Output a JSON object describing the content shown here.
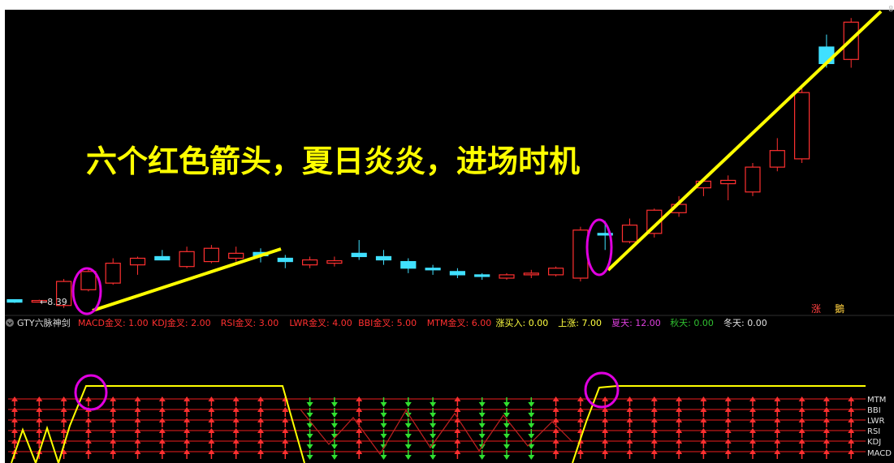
{
  "upper_panel": {
    "headline": "六个红色箭头，夏日炎炎，进场时机",
    "price_marker": "←8.39",
    "corner_value": "8",
    "badges": [
      "涨",
      "鵝"
    ]
  },
  "indicator_bar": {
    "name": "GTY六脉神剑",
    "items": [
      {
        "label": "MACD金叉",
        "value": "1.00",
        "color": "#ff3030"
      },
      {
        "label": "KDJ金叉",
        "value": "2.00",
        "color": "#ff3030"
      },
      {
        "label": "RSI金叉",
        "value": "3.00",
        "color": "#ff3030"
      },
      {
        "label": "LWR金叉",
        "value": "4.00",
        "color": "#ff3030"
      },
      {
        "label": "BBI金叉",
        "value": "5.00",
        "color": "#ff3030"
      },
      {
        "label": "MTM金叉",
        "value": "6.00",
        "color": "#ff3030"
      },
      {
        "label": "涨买入",
        "value": "0.00",
        "color": "#ffff40"
      },
      {
        "label": "上涨",
        "value": "7.00",
        "color": "#ffff40"
      },
      {
        "label": "夏天",
        "value": "12.00",
        "color": "#e040e0"
      },
      {
        "label": "秋天",
        "value": "0.00",
        "color": "#30c030"
      },
      {
        "label": "冬天",
        "value": "0.00",
        "color": "#e0e0e0"
      }
    ]
  },
  "lower_panel": {
    "row_labels": [
      "MTM",
      "BBI",
      "LWR",
      "RSI",
      "KDJ",
      "MACD"
    ]
  },
  "colors": {
    "background": "#000000",
    "up": "#ff3030",
    "down": "#40e0ff",
    "trend": "#ffff00",
    "highlight": "#e000e0",
    "signal_up": "#ff3030",
    "signal_down": "#30e030"
  },
  "candles": [
    {
      "o": 8.4,
      "h": 8.4,
      "l": 8.36,
      "c": 8.37
    },
    {
      "o": 8.39,
      "h": 8.4,
      "l": 8.38,
      "c": 8.39
    },
    {
      "o": 8.33,
      "h": 8.65,
      "l": 8.3,
      "c": 8.62
    },
    {
      "o": 8.52,
      "h": 8.78,
      "l": 8.5,
      "c": 8.74
    },
    {
      "o": 8.6,
      "h": 8.9,
      "l": 8.58,
      "c": 8.84
    },
    {
      "o": 8.82,
      "h": 8.92,
      "l": 8.7,
      "c": 8.9
    },
    {
      "o": 8.92,
      "h": 9.0,
      "l": 8.88,
      "c": 8.88
    },
    {
      "o": 8.8,
      "h": 9.04,
      "l": 8.78,
      "c": 8.98
    },
    {
      "o": 8.86,
      "h": 9.06,
      "l": 8.84,
      "c": 9.02
    },
    {
      "o": 8.9,
      "h": 9.04,
      "l": 8.86,
      "c": 8.96
    },
    {
      "o": 8.97,
      "h": 9.02,
      "l": 8.85,
      "c": 8.93
    },
    {
      "o": 8.9,
      "h": 8.94,
      "l": 8.78,
      "c": 8.86
    },
    {
      "o": 8.82,
      "h": 8.92,
      "l": 8.78,
      "c": 8.88
    },
    {
      "o": 8.84,
      "h": 8.92,
      "l": 8.8,
      "c": 8.87
    },
    {
      "o": 8.96,
      "h": 9.12,
      "l": 8.88,
      "c": 8.92
    },
    {
      "o": 8.92,
      "h": 9.0,
      "l": 8.82,
      "c": 8.88
    },
    {
      "o": 8.86,
      "h": 8.9,
      "l": 8.72,
      "c": 8.78
    },
    {
      "o": 8.78,
      "h": 8.82,
      "l": 8.7,
      "c": 8.76
    },
    {
      "o": 8.74,
      "h": 8.78,
      "l": 8.66,
      "c": 8.7
    },
    {
      "o": 8.7,
      "h": 8.72,
      "l": 8.64,
      "c": 8.68
    },
    {
      "o": 8.66,
      "h": 8.72,
      "l": 8.64,
      "c": 8.7
    },
    {
      "o": 8.7,
      "h": 8.76,
      "l": 8.66,
      "c": 8.72
    },
    {
      "o": 8.7,
      "h": 8.8,
      "l": 8.68,
      "c": 8.78
    },
    {
      "o": 8.66,
      "h": 9.28,
      "l": 8.62,
      "c": 9.24
    },
    {
      "o": 9.2,
      "h": 9.35,
      "l": 9.0,
      "c": 9.18
    },
    {
      "o": 9.1,
      "h": 9.38,
      "l": 9.08,
      "c": 9.3
    },
    {
      "o": 9.2,
      "h": 9.5,
      "l": 9.15,
      "c": 9.48
    },
    {
      "o": 9.45,
      "h": 9.65,
      "l": 9.4,
      "c": 9.55
    },
    {
      "o": 9.75,
      "h": 9.85,
      "l": 9.65,
      "c": 9.83
    },
    {
      "o": 9.8,
      "h": 9.9,
      "l": 9.6,
      "c": 9.84
    },
    {
      "o": 9.7,
      "h": 10.05,
      "l": 9.65,
      "c": 10.0
    },
    {
      "o": 10.0,
      "h": 10.35,
      "l": 9.95,
      "c": 10.2
    },
    {
      "o": 10.1,
      "h": 10.95,
      "l": 10.05,
      "c": 10.9
    },
    {
      "o": 11.45,
      "h": 11.6,
      "l": 11.2,
      "c": 11.25
    },
    {
      "o": 11.3,
      "h": 11.8,
      "l": 11.2,
      "c": 11.75
    }
  ],
  "signal_columns": [
    "up",
    "up",
    "up",
    "up",
    "up",
    "up",
    "up",
    "up",
    "up",
    "up",
    "up",
    "up",
    "down",
    "down",
    "up",
    "down",
    "down",
    "down",
    "up",
    "down",
    "down",
    "down",
    "up",
    "up",
    "up",
    "up",
    "up",
    "up",
    "up",
    "up",
    "up",
    "up",
    "up",
    "up",
    "up"
  ]
}
